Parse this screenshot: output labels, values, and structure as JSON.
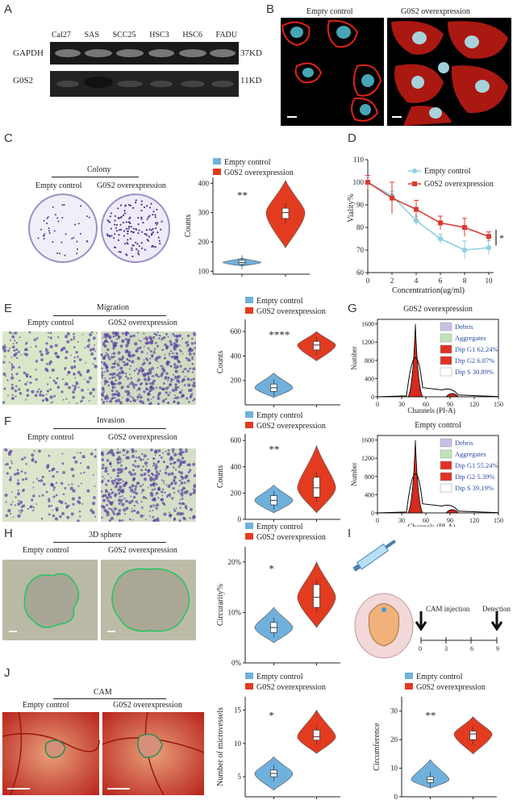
{
  "panels": {
    "A": "A",
    "B": "B",
    "C": "C",
    "D": "D",
    "E": "E",
    "F": "F",
    "G": "G",
    "H": "H",
    "I": "I",
    "J": "J"
  },
  "blot": {
    "lanes": [
      "Cal27",
      "SAS",
      "SCC25",
      "HSC3",
      "HSC6",
      "FADU"
    ],
    "row1_label": "GAPDH",
    "row1_size": "37KD",
    "row2_label": "G0S2",
    "row2_size": "11KD"
  },
  "legend": {
    "empty": "Empty control",
    "g0s2": "G0S2 overexpression"
  },
  "colors": {
    "empty": "#6fb1dc",
    "g0s2": "#e23b1f",
    "lineEmpty": "#8fd0e0",
    "lineG0s2": "#d93a30"
  },
  "panel_b": {
    "left": "Empty control",
    "right": "G0S2 overexpression"
  },
  "panel_c": {
    "title": "Colony",
    "left": "Empty control",
    "right": "G0S2 overexpression",
    "sig": "**"
  },
  "panel_e": {
    "title": "Migration",
    "left": "Empty control",
    "right": "G0S2 overexpression",
    "sig": "****"
  },
  "panel_f": {
    "title": "Invasion",
    "left": "Empty control",
    "right": "G0S2 overexpression",
    "sig": "**"
  },
  "panel_h": {
    "title": "3D sphere",
    "left": "Empty control",
    "right": "G0S2 overexpression",
    "sig": "*"
  },
  "panel_j": {
    "title": "CAM",
    "left": "Empty control",
    "right": "G0S2 overexpression",
    "sig1": "*",
    "sig2": "**"
  },
  "panel_i": {
    "label1": "CAM injection",
    "label2": "Detection",
    "ticks": [
      "0",
      "3",
      "6",
      "9"
    ]
  },
  "panel_d_sig": "*",
  "panel_g": {
    "top_title": "G0S2 overexpression",
    "bottom_title": "Empty control",
    "xlabel": "Channels (PI-A)",
    "ylabel": "Number",
    "top_legend": [
      "Debris",
      "Aggregates",
      "Dip G1 62.24%",
      "Dip G2 6.87%",
      "Dip S 30.89%"
    ],
    "bottom_legend": [
      "Debris",
      "Aggregates",
      "Dip G1 55.24%",
      "Dip G2 5.39%",
      "Dip S 39.19%"
    ]
  },
  "chart_data": [
    {
      "type": "violin",
      "panel": "C",
      "ylabel": "Counts",
      "yticks": [
        100,
        200,
        300,
        400
      ],
      "ylim": [
        90,
        420
      ],
      "series": [
        {
          "name": "Empty control",
          "median": 130,
          "q1": 124,
          "q3": 138,
          "min": 118,
          "max": 145
        },
        {
          "name": "G0S2 overexpression",
          "median": 300,
          "q1": 280,
          "q3": 315,
          "min": 180,
          "max": 410
        }
      ]
    },
    {
      "type": "line",
      "panel": "D",
      "xlabel": "Concentratrion(ug/ml)",
      "ylabel": "Viality%",
      "x": [
        0,
        2,
        4,
        6,
        8,
        10
      ],
      "xticks": [
        0,
        2,
        4,
        6,
        8,
        10
      ],
      "yticks": [
        60,
        70,
        80,
        90,
        100,
        110
      ],
      "series": [
        {
          "name": "Empty control",
          "values": [
            100,
            94,
            83,
            75,
            70,
            71
          ],
          "err": [
            2,
            2,
            2,
            2,
            4,
            3
          ]
        },
        {
          "name": "G0S2 overexpression",
          "values": [
            100,
            93,
            88,
            82,
            80,
            76
          ],
          "err": [
            3,
            7,
            4,
            3,
            4,
            2
          ]
        }
      ]
    },
    {
      "type": "violin",
      "panel": "E",
      "ylabel": "Counts",
      "yticks": [
        200,
        400,
        600
      ],
      "ylim": [
        0,
        700
      ],
      "series": [
        {
          "name": "Empty control",
          "median": 140,
          "q1": 110,
          "q3": 170,
          "min": 60,
          "max": 260
        },
        {
          "name": "G0S2 overexpression",
          "median": 490,
          "q1": 450,
          "q3": 520,
          "min": 360,
          "max": 600
        }
      ]
    },
    {
      "type": "violin",
      "panel": "F",
      "ylabel": "Counts",
      "yticks": [
        0,
        200,
        400,
        600
      ],
      "ylim": [
        0,
        650
      ],
      "series": [
        {
          "name": "Empty control",
          "median": 145,
          "q1": 110,
          "q3": 180,
          "min": 50,
          "max": 260
        },
        {
          "name": "G0S2 overexpression",
          "median": 240,
          "q1": 170,
          "q3": 320,
          "min": 50,
          "max": 560
        }
      ]
    },
    {
      "type": "violin",
      "panel": "H",
      "ylabel": "Circurarity%",
      "yticks": [
        "0%",
        "10%",
        "20%"
      ],
      "ylim": [
        0,
        23
      ],
      "series": [
        {
          "name": "Empty control",
          "median": 7,
          "q1": 6,
          "q3": 8,
          "min": 4,
          "max": 11
        },
        {
          "name": "G0S2 overexpression",
          "median": 13,
          "q1": 11,
          "q3": 15.5,
          "min": 7,
          "max": 20
        }
      ]
    },
    {
      "type": "violin",
      "panel": "J1",
      "ylabel": "Number of microvessels",
      "yticks": [
        5,
        10,
        15
      ],
      "ylim": [
        2,
        17
      ],
      "series": [
        {
          "name": "Empty control",
          "median": 5.5,
          "q1": 5,
          "q3": 6,
          "min": 3,
          "max": 8
        },
        {
          "name": "G0S2 overexpression",
          "median": 11,
          "q1": 10.5,
          "q3": 12,
          "min": 8.5,
          "max": 15
        }
      ]
    },
    {
      "type": "violin",
      "panel": "J2",
      "ylabel": "Circumference",
      "yticks": [
        0,
        10,
        20,
        30
      ],
      "ylim": [
        0,
        35
      ],
      "series": [
        {
          "name": "Empty control",
          "median": 6,
          "q1": 5,
          "q3": 7,
          "min": 3,
          "max": 13
        },
        {
          "name": "G0S2 overexpression",
          "median": 22,
          "q1": 20,
          "q3": 23,
          "min": 15,
          "max": 28
        }
      ]
    },
    {
      "type": "histogram",
      "panel": "G-top",
      "xticks": [
        0,
        30,
        60,
        90,
        120,
        150
      ],
      "yticks": [
        0,
        400,
        800,
        1200,
        1600
      ],
      "g1_peak": 1600,
      "g2_peak": 60
    },
    {
      "type": "histogram",
      "panel": "G-bottom",
      "xticks": [
        0,
        30,
        60,
        90,
        120,
        150
      ],
      "yticks": [
        0,
        400,
        800,
        1200,
        1600
      ],
      "g1_peak": 1600,
      "g2_peak": 60
    }
  ]
}
